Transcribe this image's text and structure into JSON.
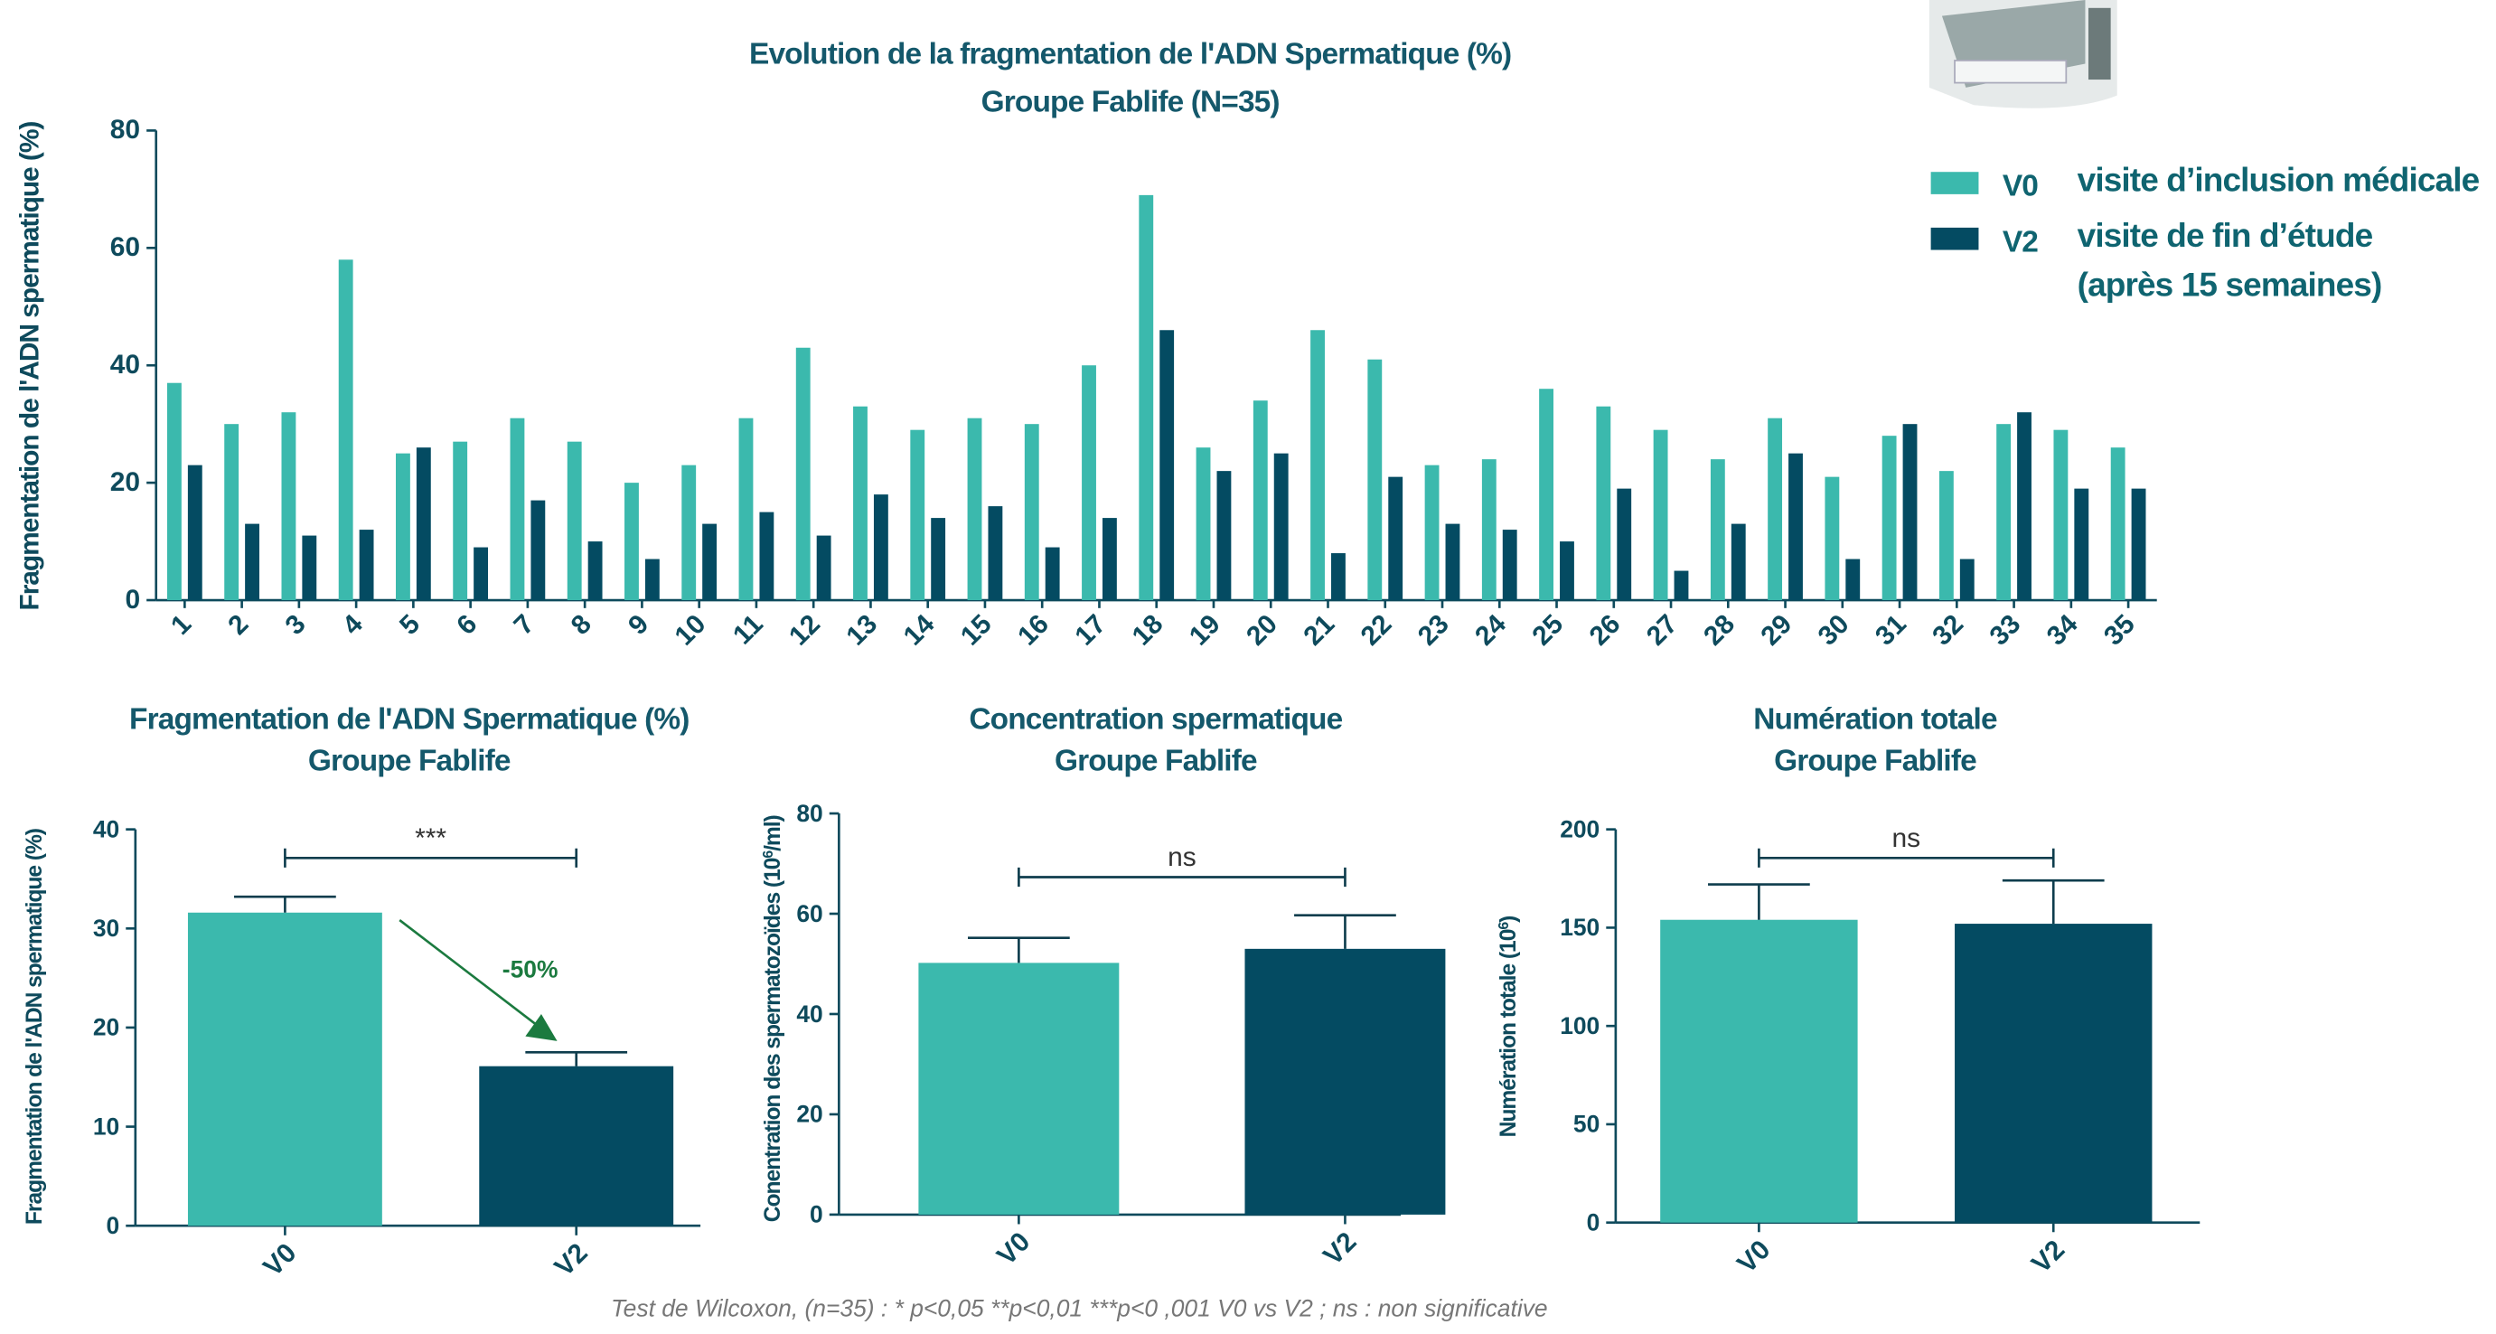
{
  "chart_data": [
    {
      "type": "bar",
      "title": "Evolution de la fragmentation de l'ADN Spermatique (%)",
      "subtitle": "Groupe Fablife (N=35)",
      "ylabel": "Fragmentation de l'ADN spermatique (%)",
      "categories": [
        "1",
        "2",
        "3",
        "4",
        "5",
        "6",
        "7",
        "8",
        "9",
        "10",
        "11",
        "12",
        "13",
        "14",
        "15",
        "16",
        "17",
        "18",
        "19",
        "20",
        "21",
        "22",
        "23",
        "24",
        "25",
        "26",
        "27",
        "28",
        "29",
        "30",
        "31",
        "32",
        "33",
        "34",
        "35"
      ],
      "series": [
        {
          "name": "V0",
          "description": [
            "visite d’inclusion médicale"
          ],
          "color": "#3bb9ad",
          "values": [
            37,
            30,
            32,
            58,
            25,
            27,
            31,
            27,
            20,
            23,
            31,
            43,
            33,
            29,
            31,
            30,
            40,
            69,
            26,
            34,
            46,
            41,
            23,
            24,
            36,
            33,
            29,
            24,
            31,
            21,
            28,
            22,
            30,
            29,
            26
          ]
        },
        {
          "name": "V2",
          "description": [
            "visite de fin d’étude",
            "(après 15 semaines)"
          ],
          "color": "#044b62",
          "values": [
            23,
            13,
            11,
            12,
            26,
            9,
            17,
            10,
            7,
            13,
            15,
            11,
            18,
            14,
            16,
            9,
            14,
            46,
            22,
            25,
            8,
            21,
            13,
            12,
            10,
            19,
            5,
            13,
            25,
            7,
            30,
            7,
            32,
            19,
            19
          ]
        }
      ],
      "ylim": [
        0,
        80
      ],
      "yticks": [
        0,
        20,
        40,
        60,
        80
      ]
    },
    {
      "type": "bar",
      "title": "Fragmentation de l'ADN Spermatique (%)",
      "subtitle": "Groupe Fablife",
      "ylabel": [
        "Fragmentation de l'ADN spermatique (%)"
      ],
      "categories": [
        "V0",
        "V2"
      ],
      "values": [
        31.6,
        16.1
      ],
      "errors": [
        1.6,
        1.4
      ],
      "colors": [
        "#3bb9ad",
        "#044b62"
      ],
      "ylim": [
        0,
        40
      ],
      "yticks": [
        0,
        10,
        20,
        30,
        40
      ],
      "significance": "***",
      "annotation": "-50%"
    },
    {
      "type": "bar",
      "title": "Concentration spermatique",
      "subtitle": "Groupe Fablife",
      "ylabel": [
        "Conentration des spermatozoïdes (10",
        "6",
        "/ml)"
      ],
      "categories": [
        "V0",
        "V2"
      ],
      "values": [
        50.2,
        53
      ],
      "errors": [
        5,
        6.7
      ],
      "colors": [
        "#3bb9ad",
        "#044b62"
      ],
      "ylim": [
        0,
        80
      ],
      "yticks": [
        0,
        20,
        40,
        60,
        80
      ],
      "significance": "ns"
    },
    {
      "type": "bar",
      "title": "Numération totale",
      "subtitle": "Groupe Fablife",
      "ylabel": [
        "Numération totale (10",
        "6",
        ")"
      ],
      "categories": [
        "V0",
        "V2"
      ],
      "values": [
        154,
        152
      ],
      "errors": [
        18,
        22
      ],
      "colors": [
        "#3bb9ad",
        "#044b62"
      ],
      "ylim": [
        0,
        200
      ],
      "yticks": [
        0,
        50,
        100,
        150,
        200
      ],
      "significance": "ns"
    }
  ],
  "footnote": "Test de Wilcoxon, (n=35) : * p<0,05   **p<0,01   ***p<0 ,001  V0 vs V2 ; ns : non significative"
}
